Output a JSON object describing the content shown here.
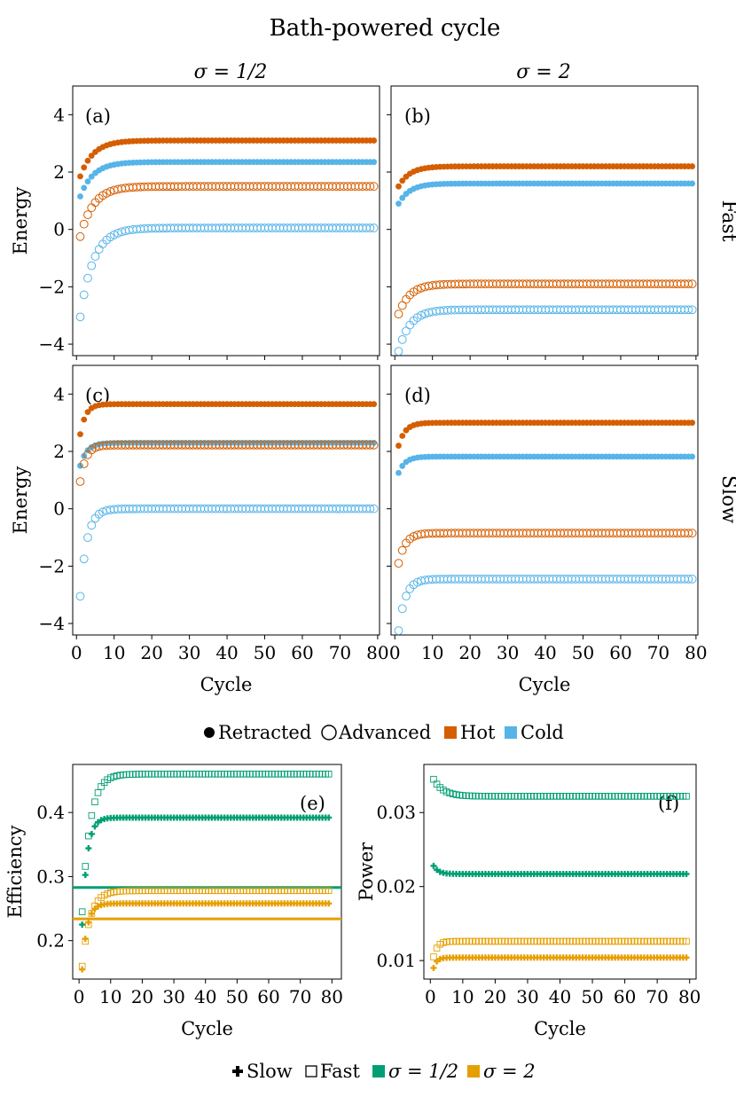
{
  "figure": {
    "title": "Bath-powered cycle",
    "col_labels": [
      "σ = 1/2",
      "σ = 2"
    ],
    "row_labels": [
      "Fast",
      "Slow"
    ],
    "legend_top": [
      "Retracted",
      "Advanced",
      "Hot",
      "Cold"
    ],
    "legend_bottom": [
      "Slow",
      "Fast",
      "σ = 1/2",
      "σ = 2"
    ]
  },
  "colors": {
    "hot": "#d55e00",
    "cold": "#56b4e9",
    "sigma_half": "#009e73",
    "sigma_two": "#e69f00"
  },
  "chart_data": [
    {
      "id": "a",
      "type": "scatter",
      "panel_label": "(a)",
      "xlabel": "",
      "ylabel": "Energy",
      "xlim": [
        -1,
        80.5
      ],
      "ylim": [
        -4.4,
        5
      ],
      "xticks": [
        0,
        10,
        20,
        30,
        40,
        50,
        60,
        70,
        80
      ],
      "yticks": [
        -4,
        -2,
        0,
        2,
        4
      ],
      "series": [
        {
          "name": "Hot Retracted",
          "color": "hot",
          "marker": "filled",
          "start": 1.85,
          "end": 3.1,
          "tau": 3.5
        },
        {
          "name": "Cold Retracted",
          "color": "cold",
          "marker": "filled",
          "start": 1.15,
          "end": 2.35,
          "tau": 3.5
        },
        {
          "name": "Hot Advanced",
          "color": "hot",
          "marker": "open",
          "start": -0.25,
          "end": 1.5,
          "tau": 3.5
        },
        {
          "name": "Cold Advanced",
          "color": "cold",
          "marker": "open",
          "start": -3.05,
          "end": 0.05,
          "tau": 3.5
        }
      ]
    },
    {
      "id": "b",
      "type": "scatter",
      "panel_label": "(b)",
      "xlabel": "",
      "ylabel": "",
      "xlim": [
        -1,
        80.5
      ],
      "ylim": [
        -4.4,
        5
      ],
      "xticks": [
        0,
        10,
        20,
        30,
        40,
        50,
        60,
        70,
        80
      ],
      "yticks": [
        -4,
        -2,
        0,
        2,
        4
      ],
      "series": [
        {
          "name": "Hot Retracted",
          "color": "hot",
          "marker": "filled",
          "start": 1.5,
          "end": 2.2,
          "tau": 3
        },
        {
          "name": "Cold Retracted",
          "color": "cold",
          "marker": "filled",
          "start": 0.9,
          "end": 1.6,
          "tau": 3
        },
        {
          "name": "Hot Advanced",
          "color": "hot",
          "marker": "open",
          "start": -2.95,
          "end": -1.9,
          "tau": 3
        },
        {
          "name": "Cold Advanced",
          "color": "cold",
          "marker": "open",
          "start": -4.25,
          "end": -2.8,
          "tau": 3
        }
      ]
    },
    {
      "id": "c",
      "type": "scatter",
      "panel_label": "(c)",
      "xlabel": "Cycle",
      "ylabel": "Energy",
      "xlim": [
        -1,
        80.5
      ],
      "ylim": [
        -4.4,
        5
      ],
      "xticks": [
        0,
        10,
        20,
        30,
        40,
        50,
        60,
        70,
        80
      ],
      "yticks": [
        -4,
        -2,
        0,
        2,
        4
      ],
      "series": [
        {
          "name": "Hot Retracted",
          "color": "hot",
          "marker": "filled",
          "start": 2.6,
          "end": 3.65,
          "tau": 1.5
        },
        {
          "name": "Cold Retracted",
          "color": "cold",
          "marker": "filled",
          "start": 1.5,
          "end": 2.3,
          "tau": 1.8
        },
        {
          "name": "Hot Advanced",
          "color": "hot",
          "marker": "open",
          "start": 0.95,
          "end": 2.22,
          "tau": 1.5
        },
        {
          "name": "Cold Advanced",
          "color": "cold",
          "marker": "open",
          "start": -3.05,
          "end": 0.0,
          "tau": 1.8
        }
      ]
    },
    {
      "id": "d",
      "type": "scatter",
      "panel_label": "(d)",
      "xlabel": "Cycle",
      "ylabel": "",
      "xlim": [
        -1,
        80.5
      ],
      "ylim": [
        -4.4,
        5
      ],
      "xticks": [
        0,
        10,
        20,
        30,
        40,
        50,
        60,
        70,
        80
      ],
      "yticks": [
        -4,
        -2,
        0,
        2,
        4
      ],
      "series": [
        {
          "name": "Hot Retracted",
          "color": "hot",
          "marker": "filled",
          "start": 2.2,
          "end": 3.0,
          "tau": 1.8
        },
        {
          "name": "Cold Retracted",
          "color": "cold",
          "marker": "filled",
          "start": 1.25,
          "end": 1.82,
          "tau": 1.8
        },
        {
          "name": "Hot Advanced",
          "color": "hot",
          "marker": "open",
          "start": -1.9,
          "end": -0.85,
          "tau": 1.8
        },
        {
          "name": "Cold Advanced",
          "color": "cold",
          "marker": "open",
          "start": -4.25,
          "end": -2.45,
          "tau": 1.8
        }
      ]
    },
    {
      "id": "e",
      "type": "scatter",
      "panel_label": "(e)",
      "xlabel": "Cycle",
      "ylabel": "Efficiency",
      "xlim": [
        -2,
        83
      ],
      "ylim": [
        0.14,
        0.475
      ],
      "xticks": [
        0,
        10,
        20,
        30,
        40,
        50,
        60,
        70,
        80
      ],
      "yticks": [
        0.2,
        0.3,
        0.4
      ],
      "ytick_labels": [
        "0.2",
        "0.3",
        "0.4"
      ],
      "series": [
        {
          "name": "Fast σ=1/2",
          "color": "sigma_half",
          "marker": "square",
          "start": 0.245,
          "end": 0.46,
          "tau": 2.5
        },
        {
          "name": "Slow σ=1/2",
          "color": "sigma_half",
          "marker": "plus",
          "start": 0.225,
          "end": 0.392,
          "tau": 1.6
        },
        {
          "name": "Fast σ=2",
          "color": "sigma_two",
          "marker": "square",
          "start": 0.16,
          "end": 0.278,
          "tau": 2.5
        },
        {
          "name": "Slow σ=2",
          "color": "sigma_two",
          "marker": "plus",
          "start": 0.155,
          "end": 0.258,
          "tau": 1.6
        }
      ],
      "hlines": [
        {
          "name": "σ = 1/2 reference",
          "color": "sigma_half",
          "y": 0.283
        },
        {
          "name": "σ = 2 reference",
          "color": "sigma_two",
          "y": 0.234
        }
      ]
    },
    {
      "id": "f",
      "type": "scatter",
      "panel_label": "(f)",
      "xlabel": "Cycle",
      "ylabel": "Power",
      "xlim": [
        -2,
        82
      ],
      "ylim": [
        0.0075,
        0.0365
      ],
      "xticks": [
        0,
        10,
        20,
        30,
        40,
        50,
        60,
        70,
        80
      ],
      "yticks": [
        0.01,
        0.02,
        0.03
      ],
      "ytick_labels": [
        "0.01",
        "0.02",
        "0.03"
      ],
      "series": [
        {
          "name": "Fast σ=1/2",
          "color": "sigma_half",
          "marker": "square",
          "start": 0.0345,
          "end": 0.0322,
          "tau": 3
        },
        {
          "name": "Slow σ=1/2",
          "color": "sigma_half",
          "marker": "plus",
          "start": 0.0228,
          "end": 0.0217,
          "tau": 1.5
        },
        {
          "name": "Fast σ=2",
          "color": "sigma_two",
          "marker": "square",
          "start": 0.0105,
          "end": 0.0126,
          "tau": 1.2
        },
        {
          "name": "Slow σ=2",
          "color": "sigma_two",
          "marker": "plus",
          "start": 0.009,
          "end": 0.0104,
          "tau": 1.0
        }
      ]
    }
  ]
}
